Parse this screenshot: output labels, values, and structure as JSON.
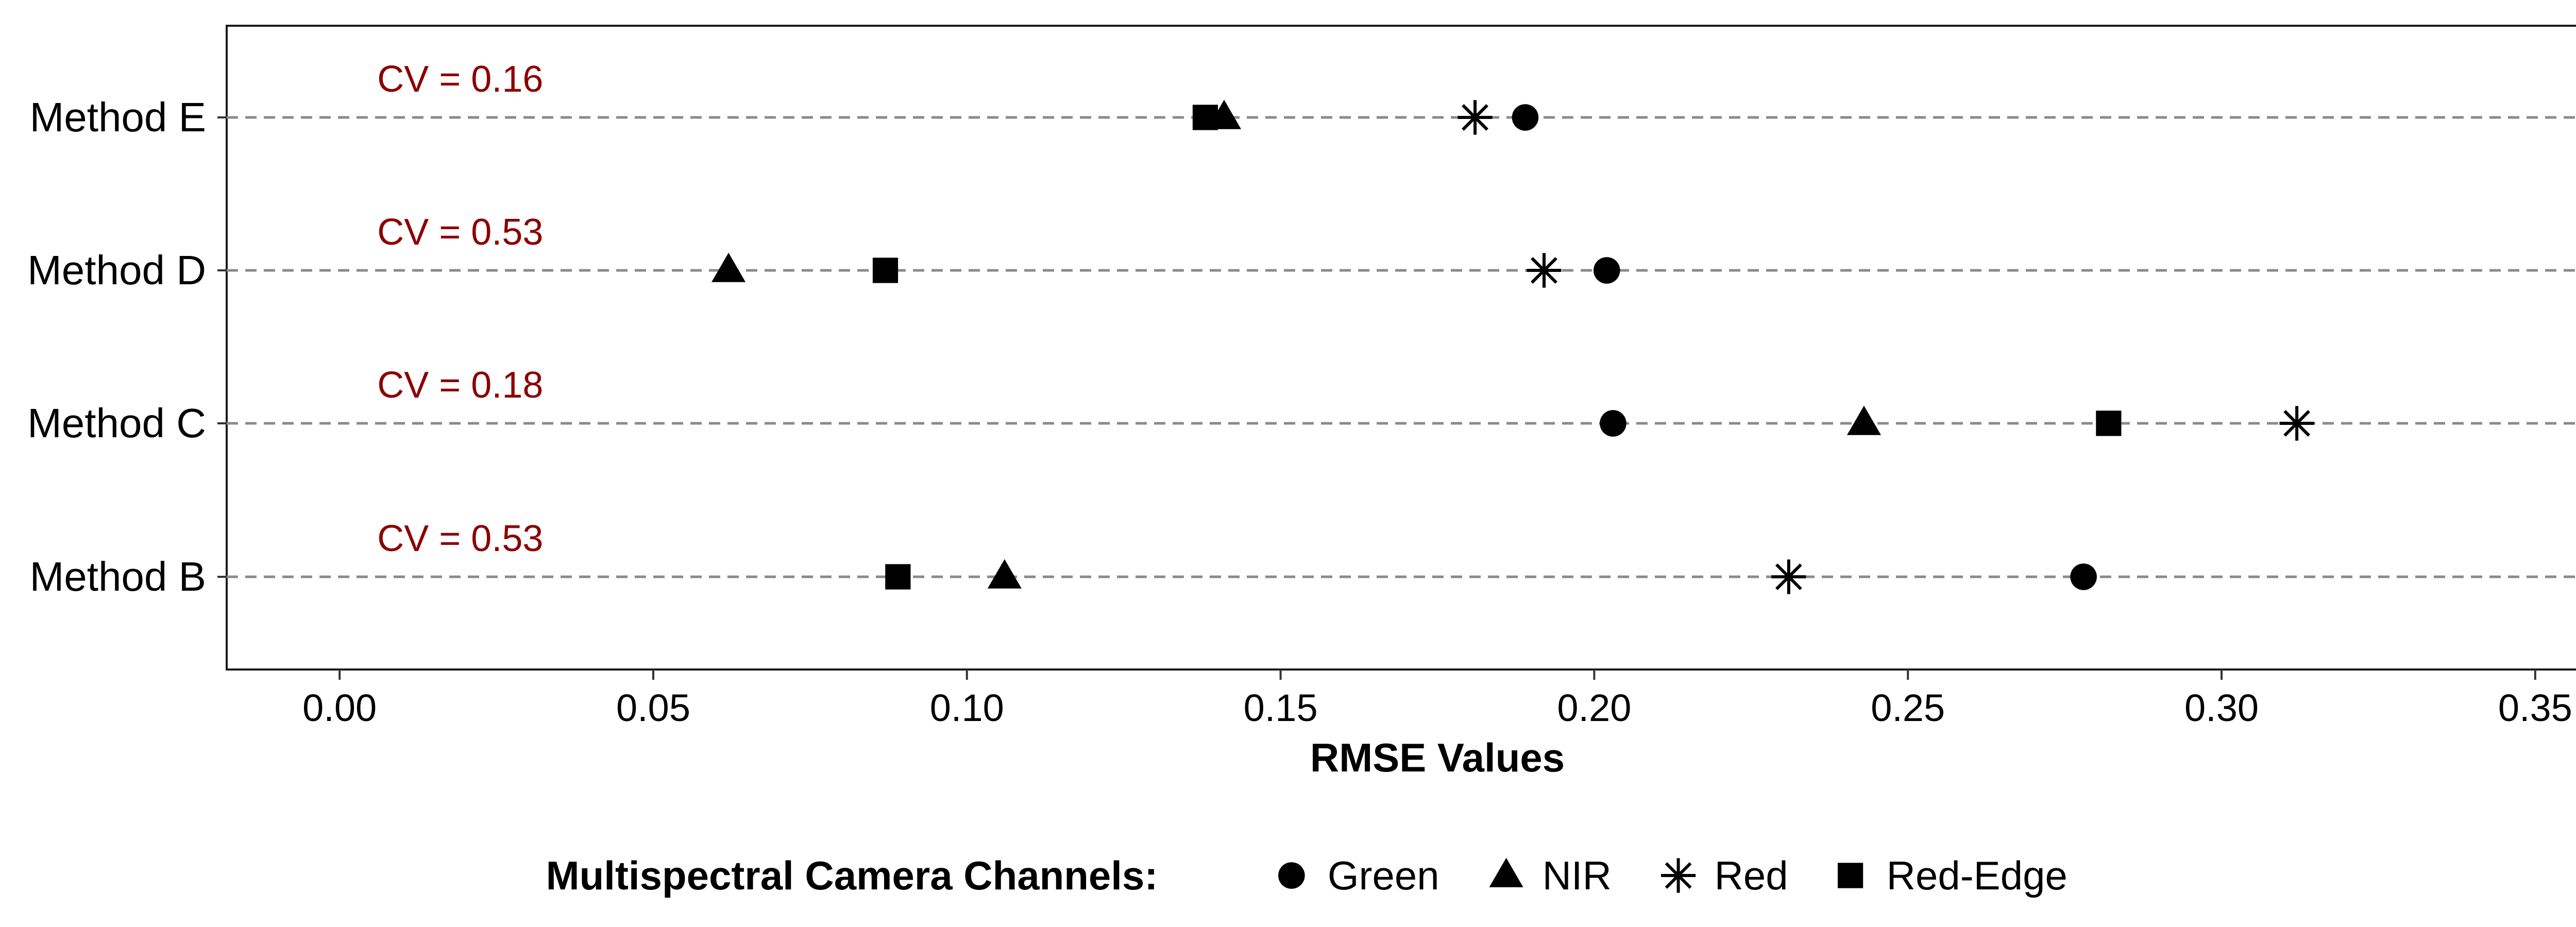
{
  "chart_data": {
    "type": "scatter",
    "title": "",
    "xlabel": "RMSE Values",
    "ylabel": "",
    "xlim": [
      -0.018,
      0.368
    ],
    "x_ticks": [
      "0.00",
      "0.05",
      "0.10",
      "0.15",
      "0.20",
      "0.25",
      "0.30",
      "0.35"
    ],
    "x_tick_values": [
      0.0,
      0.05,
      0.1,
      0.15,
      0.2,
      0.25,
      0.3,
      0.35
    ],
    "categories": [
      "Method E",
      "Method D",
      "Method C",
      "Method B"
    ],
    "grid": "dashed horizontal lines at each method",
    "annotation_color": "#8b0000",
    "annotations": [
      {
        "category": "Method E",
        "text": "CV = 0.16"
      },
      {
        "category": "Method D",
        "text": "CV = 0.53"
      },
      {
        "category": "Method C",
        "text": "CV = 0.18"
      },
      {
        "category": "Method B",
        "text": "CV = 0.53"
      }
    ],
    "legend": {
      "title": "Multispectral Camera Channels:",
      "placement": "bottom"
    },
    "series": [
      {
        "name": "Green",
        "marker": "circle",
        "values": {
          "Method E": 0.189,
          "Method D": 0.202,
          "Method C": 0.203,
          "Method B": 0.278
        }
      },
      {
        "name": "NIR",
        "marker": "triangle",
        "values": {
          "Method E": 0.141,
          "Method D": 0.062,
          "Method C": 0.243,
          "Method B": 0.106
        }
      },
      {
        "name": "Red",
        "marker": "asterisk",
        "values": {
          "Method E": 0.181,
          "Method D": 0.192,
          "Method C": 0.312,
          "Method B": 0.231
        }
      },
      {
        "name": "Red-Edge",
        "marker": "square",
        "values": {
          "Method E": 0.138,
          "Method D": 0.087,
          "Method C": 0.282,
          "Method B": 0.089
        }
      }
    ]
  }
}
